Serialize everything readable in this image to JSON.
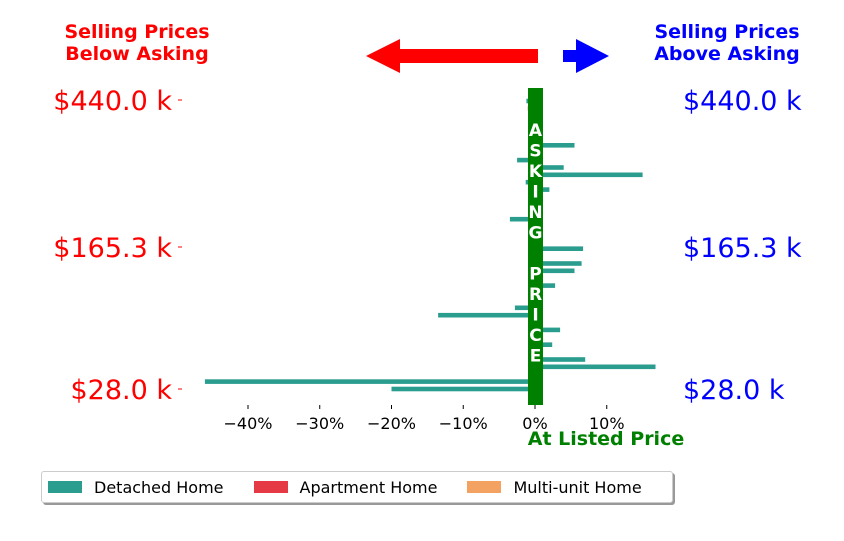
{
  "header": {
    "left_line1": "Selling Prices",
    "left_line2": "Below Asking",
    "right_line1": "Selling Prices",
    "right_line2": "Above Asking"
  },
  "center_text": {
    "vertical_word": "ASKING PRICE",
    "bottom_label": "At Listed Price"
  },
  "legend": {
    "detached": "Detached Home",
    "apartment": "Apartment Home",
    "multi": "Multi-unit Home"
  },
  "colors": {
    "detached": "#2a9d8f",
    "apartment": "#e63946",
    "multi": "#f4a261",
    "left_red": "#ff0000",
    "right_blue": "#0000ff",
    "green": "#008000"
  },
  "chart_data": {
    "type": "bar",
    "orientation": "horizontal",
    "x_ticks": [
      "−40%",
      "−30%",
      "−20%",
      "−10%",
      "0%",
      "10%"
    ],
    "x_tick_values": [
      -40,
      -30,
      -20,
      -10,
      0,
      10
    ],
    "xlim": [
      -47,
      17
    ],
    "y_tick_labels_left": [
      "$440.0 k",
      "$165.3 k",
      "$28.0 k"
    ],
    "y_tick_labels_right": [
      "$440.0 k",
      "$165.3 k",
      "$28.0 k"
    ],
    "series": [
      {
        "name": "Detached Home",
        "color": "#2a9d8f",
        "bars": [
          {
            "rank": 0,
            "value": -1.2
          },
          {
            "rank": 6,
            "value": 5.5
          },
          {
            "rank": 8,
            "value": -2.5
          },
          {
            "rank": 9,
            "value": 4.0
          },
          {
            "rank": 10,
            "value": 15.0
          },
          {
            "rank": 11,
            "value": -1.3
          },
          {
            "rank": 12,
            "value": 2.0
          },
          {
            "rank": 16,
            "value": -3.5
          },
          {
            "rank": 20,
            "value": 6.7
          },
          {
            "rank": 22,
            "value": 6.5
          },
          {
            "rank": 23,
            "value": 5.5
          },
          {
            "rank": 25,
            "value": 2.8
          },
          {
            "rank": 28,
            "value": -2.8
          },
          {
            "rank": 29,
            "value": -13.5
          },
          {
            "rank": 31,
            "value": 3.5
          },
          {
            "rank": 33,
            "value": 2.4
          },
          {
            "rank": 35,
            "value": 7.0
          },
          {
            "rank": 36,
            "value": 16.8
          },
          {
            "rank": 38,
            "value": -46.0
          },
          {
            "rank": 39,
            "value": -20.0
          }
        ]
      },
      {
        "name": "Apartment Home",
        "color": "#e63946",
        "bars": [
          {
            "rank": 1,
            "value": -1.0
          },
          {
            "rank": 17,
            "value": -0.5
          }
        ]
      },
      {
        "name": "Multi-unit Home",
        "color": "#f4a261",
        "bars": [
          {
            "rank": 5,
            "value": -0.8
          }
        ]
      }
    ]
  }
}
